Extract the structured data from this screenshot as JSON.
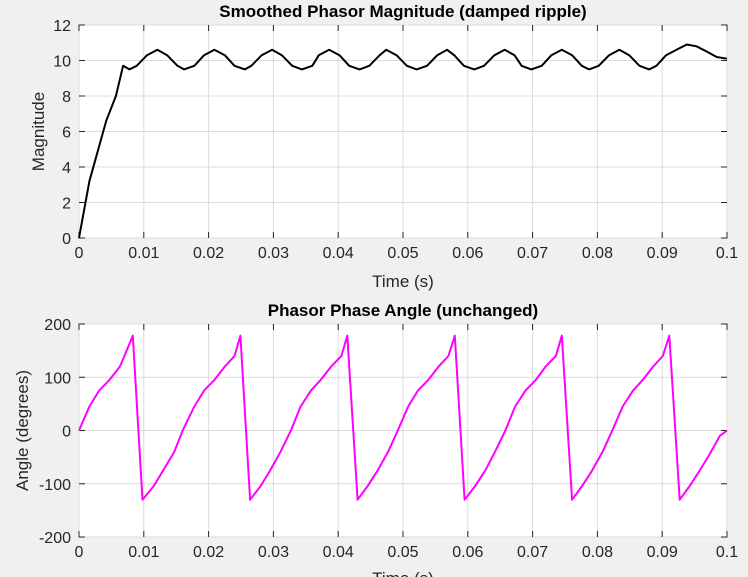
{
  "figure": {
    "background": "#f0f0f0"
  },
  "chart_data": [
    {
      "type": "line",
      "title": "Smoothed Phasor Magnitude (damped ripple)",
      "xlabel": "Time (s)",
      "ylabel": "Magnitude",
      "xlim": [
        0,
        0.1
      ],
      "ylim": [
        0,
        12
      ],
      "xticks": [
        0,
        0.01,
        0.02,
        0.03,
        0.04,
        0.05,
        0.06,
        0.07,
        0.08,
        0.09,
        0.1
      ],
      "xtick_labels": [
        "0",
        "0.01",
        "0.02",
        "0.03",
        "0.04",
        "0.05",
        "0.06",
        "0.07",
        "0.08",
        "0.09",
        "0.1"
      ],
      "yticks": [
        0,
        2,
        4,
        6,
        8,
        10,
        12
      ],
      "ytick_labels": [
        "0",
        "2",
        "4",
        "6",
        "8",
        "10",
        "12"
      ],
      "grid": true,
      "series": [
        {
          "color": "#000000",
          "x": [
            0,
            0.0016,
            0.0042,
            0.0057,
            0.0068,
            0.0078,
            0.0089,
            0.0105,
            0.0121,
            0.0136,
            0.0152,
            0.0162,
            0.0178,
            0.0193,
            0.0209,
            0.0225,
            0.024,
            0.0256,
            0.0266,
            0.0282,
            0.0298,
            0.0313,
            0.0329,
            0.0344,
            0.036,
            0.037,
            0.0386,
            0.0402,
            0.0417,
            0.0433,
            0.0448,
            0.0464,
            0.0474,
            0.049,
            0.0506,
            0.0521,
            0.0537,
            0.0553,
            0.0568,
            0.0579,
            0.0594,
            0.061,
            0.0625,
            0.0641,
            0.0657,
            0.0672,
            0.0683,
            0.0698,
            0.0714,
            0.0729,
            0.0745,
            0.0761,
            0.0776,
            0.0787,
            0.0802,
            0.0818,
            0.0834,
            0.0849,
            0.0865,
            0.088,
            0.0891,
            0.0906,
            0.0922,
            0.0938,
            0.0953,
            0.0969,
            0.0984,
            0.1
          ],
          "y": [
            0,
            3.2,
            6.6,
            8.0,
            9.7,
            9.5,
            9.7,
            10.3,
            10.6,
            10.3,
            9.7,
            9.5,
            9.7,
            10.3,
            10.6,
            10.3,
            9.7,
            9.5,
            9.7,
            10.3,
            10.6,
            10.3,
            9.7,
            9.5,
            9.7,
            10.3,
            10.6,
            10.3,
            9.7,
            9.5,
            9.7,
            10.3,
            10.6,
            10.3,
            9.7,
            9.5,
            9.7,
            10.3,
            10.6,
            10.3,
            9.7,
            9.5,
            9.7,
            10.3,
            10.6,
            10.3,
            9.7,
            9.5,
            9.7,
            10.3,
            10.6,
            10.3,
            9.7,
            9.5,
            9.7,
            10.3,
            10.6,
            10.3,
            9.7,
            9.5,
            9.7,
            10.3,
            10.6,
            10.9,
            10.8,
            10.5,
            10.2,
            10.1
          ]
        }
      ]
    },
    {
      "type": "line",
      "title": "Phasor Phase Angle (unchanged)",
      "xlabel": "Time (s)",
      "ylabel": "Angle (degrees)",
      "xlim": [
        0,
        0.1
      ],
      "ylim": [
        -200,
        200
      ],
      "xticks": [
        0,
        0.01,
        0.02,
        0.03,
        0.04,
        0.05,
        0.06,
        0.07,
        0.08,
        0.09,
        0.1
      ],
      "xtick_labels": [
        "0",
        "0.01",
        "0.02",
        "0.03",
        "0.04",
        "0.05",
        "0.06",
        "0.07",
        "0.08",
        "0.09",
        "0.1"
      ],
      "yticks": [
        -200,
        -100,
        0,
        100,
        200
      ],
      "ytick_labels": [
        "-200",
        "-100",
        "0",
        "100",
        "200"
      ],
      "grid": true,
      "series": [
        {
          "color": "#ff00ff",
          "x": [
            0,
            0.0016,
            0.0031,
            0.0047,
            0.0063,
            0.007,
            0.0083,
            0.0098,
            0.0115,
            0.013,
            0.0147,
            0.016,
            0.0178,
            0.0193,
            0.0209,
            0.0225,
            0.024,
            0.0249,
            0.0264,
            0.028,
            0.0295,
            0.0311,
            0.0327,
            0.0342,
            0.0358,
            0.0373,
            0.0389,
            0.0405,
            0.0414,
            0.043,
            0.0445,
            0.0461,
            0.0477,
            0.0492,
            0.0508,
            0.0523,
            0.0539,
            0.0555,
            0.057,
            0.058,
            0.0595,
            0.0611,
            0.0627,
            0.0642,
            0.0658,
            0.0673,
            0.0689,
            0.0705,
            0.072,
            0.0736,
            0.0745,
            0.0761,
            0.0776,
            0.0792,
            0.0808,
            0.0823,
            0.0839,
            0.0855,
            0.087,
            0.0886,
            0.0901,
            0.0911,
            0.0927,
            0.0942,
            0.0958,
            0.0973,
            0.0989,
            0.1
          ],
          "y": [
            0,
            45,
            75,
            95,
            120,
            140,
            178,
            -130,
            -105,
            -75,
            -40,
            0,
            45,
            75,
            95,
            120,
            140,
            178,
            -130,
            -105,
            -75,
            -40,
            0,
            45,
            75,
            95,
            120,
            140,
            178,
            -130,
            -105,
            -75,
            -40,
            0,
            45,
            75,
            95,
            120,
            140,
            178,
            -130,
            -105,
            -75,
            -40,
            0,
            45,
            75,
            95,
            120,
            140,
            178,
            -130,
            -105,
            -75,
            -40,
            0,
            45,
            75,
            95,
            120,
            140,
            178,
            -130,
            -105,
            -75,
            -45,
            -10,
            0
          ]
        }
      ]
    }
  ]
}
